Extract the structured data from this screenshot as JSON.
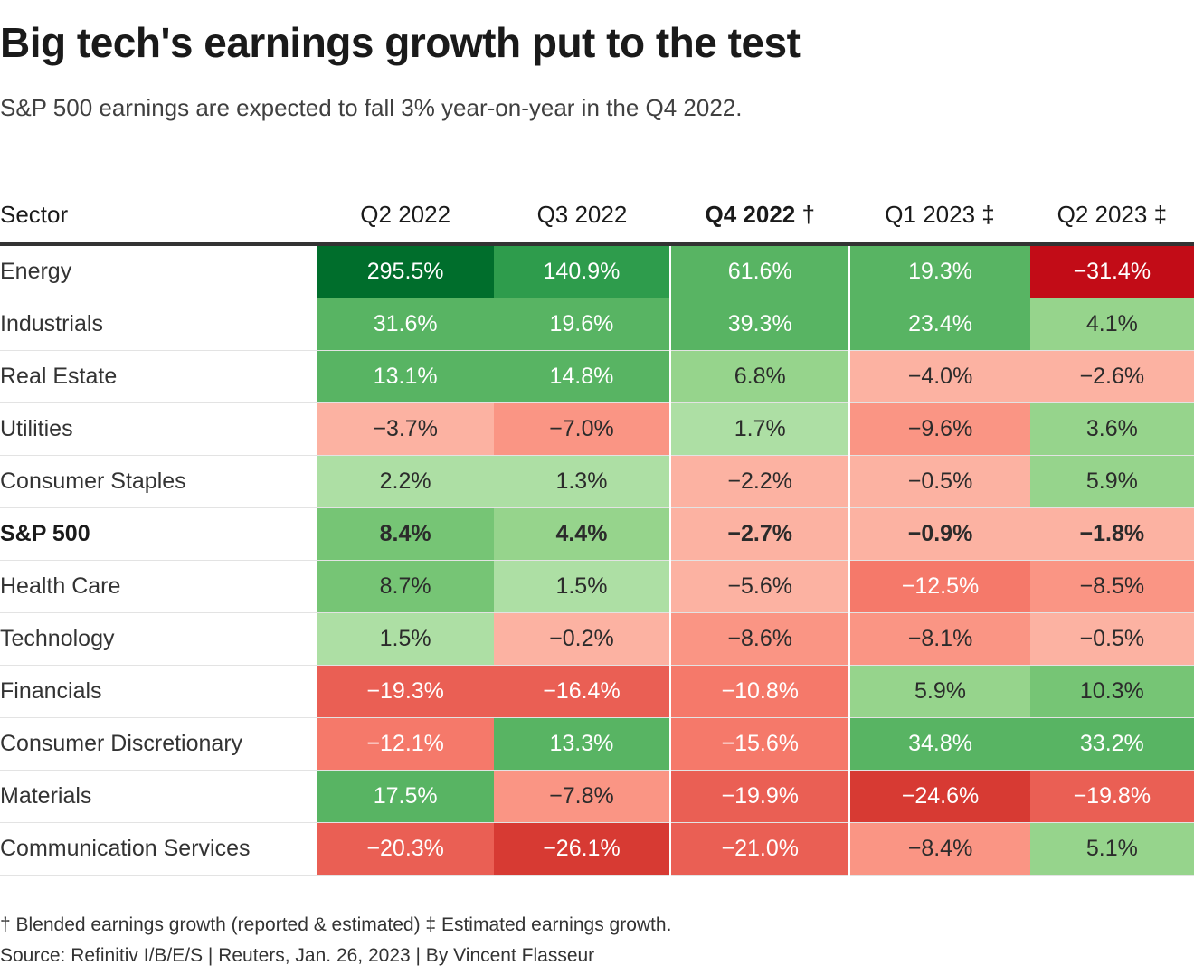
{
  "header": {
    "title": "Big tech's earnings growth put to the test",
    "subtitle": "S&P 500 earnings are expected to fall 3% year-on-year in the Q4 2022."
  },
  "chart_data": {
    "type": "table",
    "title": "Big tech's earnings growth put to the test",
    "columns": [
      "Sector",
      "Q2 2022",
      "Q3 2022",
      "Q4 2022 †",
      "Q1 2023 ‡",
      "Q2 2023 ‡"
    ],
    "highlight_column": "Q4 2022 †",
    "highlight_row": "S&P 500",
    "rows": [
      {
        "sector": "Energy",
        "values": [
          295.5,
          140.9,
          61.6,
          19.3,
          -31.4
        ],
        "labels": [
          "295.5%",
          "140.9%",
          "61.6%",
          "19.3%",
          "−31.4%"
        ]
      },
      {
        "sector": "Industrials",
        "values": [
          31.6,
          19.6,
          39.3,
          23.4,
          4.1
        ],
        "labels": [
          "31.6%",
          "19.6%",
          "39.3%",
          "23.4%",
          "4.1%"
        ]
      },
      {
        "sector": "Real Estate",
        "values": [
          13.1,
          14.8,
          6.8,
          -4.0,
          -2.6
        ],
        "labels": [
          "13.1%",
          "14.8%",
          "6.8%",
          "−4.0%",
          "−2.6%"
        ]
      },
      {
        "sector": "Utilities",
        "values": [
          -3.7,
          -7.0,
          1.7,
          -9.6,
          3.6
        ],
        "labels": [
          "−3.7%",
          "−7.0%",
          "1.7%",
          "−9.6%",
          "3.6%"
        ]
      },
      {
        "sector": "Consumer Staples",
        "values": [
          2.2,
          1.3,
          -2.2,
          -0.5,
          5.9
        ],
        "labels": [
          "2.2%",
          "1.3%",
          "−2.2%",
          "−0.5%",
          "5.9%"
        ]
      },
      {
        "sector": "S&P 500",
        "values": [
          8.4,
          4.4,
          -2.7,
          -0.9,
          -1.8
        ],
        "labels": [
          "8.4%",
          "4.4%",
          "−2.7%",
          "−0.9%",
          "−1.8%"
        ]
      },
      {
        "sector": "Health Care",
        "values": [
          8.7,
          1.5,
          -5.6,
          -12.5,
          -8.5
        ],
        "labels": [
          "8.7%",
          "1.5%",
          "−5.6%",
          "−12.5%",
          "−8.5%"
        ]
      },
      {
        "sector": "Technology",
        "values": [
          1.5,
          -0.2,
          -8.6,
          -8.1,
          -0.5
        ],
        "labels": [
          "1.5%",
          "−0.2%",
          "−8.6%",
          "−8.1%",
          "−0.5%"
        ]
      },
      {
        "sector": "Financials",
        "values": [
          -19.3,
          -16.4,
          -10.8,
          5.9,
          10.3
        ],
        "labels": [
          "−19.3%",
          "−16.4%",
          "−10.8%",
          "5.9%",
          "10.3%"
        ]
      },
      {
        "sector": "Consumer Discretionary",
        "values": [
          -12.1,
          13.3,
          -15.6,
          34.8,
          33.2
        ],
        "labels": [
          "−12.1%",
          "13.3%",
          "−15.6%",
          "34.8%",
          "33.2%"
        ]
      },
      {
        "sector": "Materials",
        "values": [
          17.5,
          -7.8,
          -19.9,
          -24.6,
          -19.8
        ],
        "labels": [
          "17.5%",
          "−7.8%",
          "−19.9%",
          "−24.6%",
          "−19.8%"
        ]
      },
      {
        "sector": "Communication Services",
        "values": [
          -20.3,
          -26.1,
          -21.0,
          -8.4,
          5.1
        ],
        "labels": [
          "−20.3%",
          "−26.1%",
          "−21.0%",
          "−8.4%",
          "5.1%"
        ]
      }
    ],
    "colors": {
      "green_dark": "#006e2c",
      "green_2": "#2e9c4c",
      "green_3": "#58b463",
      "green_4": "#76c575",
      "green_5": "#96d48c",
      "green_6": "#addfa4",
      "red_dark": "#c20c17",
      "red_2": "#d73a33",
      "red_3": "#ea5f54",
      "red_4": "#f5796a",
      "red_5": "#fa9584",
      "red_6": "#fcb2a2",
      "text_light": "#ffffff",
      "text_dark": "#2b2b2b"
    }
  },
  "footer": {
    "footnote": "† Blended earnings growth (reported & estimated) ‡ Estimated earnings growth.",
    "source": "Source: Refinitiv I/B/E/S | Reuters, Jan. 26, 2023 | By Vincent Flasseur"
  }
}
